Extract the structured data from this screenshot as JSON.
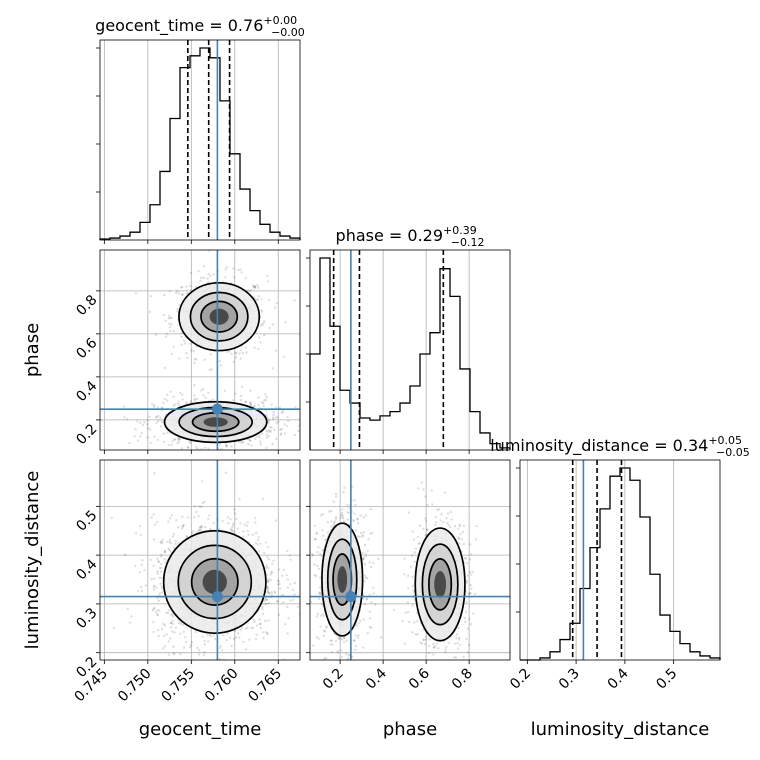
{
  "chart_data": {
    "type": "corner",
    "parameters": [
      "geocent_time",
      "phase",
      "luminosity_distance"
    ],
    "axis_labels": {
      "geocent_time": "geocent_time",
      "phase": "phase",
      "luminosity_distance": "luminosity_distance"
    },
    "titles": {
      "geocent_time": {
        "name": "geocent_time",
        "median": "0.76",
        "plus": "+0.00",
        "minus": "−0.00"
      },
      "phase": {
        "name": "phase",
        "median": "0.29",
        "plus": "+0.39",
        "minus": "−0.12"
      },
      "luminosity_distance": {
        "name": "luminosity_distance",
        "median": "0.34",
        "plus": "+0.05",
        "minus": "−0.05"
      }
    },
    "ranges": {
      "geocent_time": [
        0.7445,
        0.7675
      ],
      "phase": [
        0.06,
        0.99
      ],
      "luminosity_distance": [
        0.185,
        0.595
      ]
    },
    "ticks": {
      "geocent_time": {
        "values": [
          0.745,
          0.75,
          0.755,
          0.76,
          0.765
        ],
        "labels": [
          "0.745",
          "0.750",
          "0.755",
          "0.760",
          "0.765"
        ]
      },
      "phase": {
        "values": [
          0.2,
          0.4,
          0.6,
          0.8
        ],
        "labels": [
          "0.2",
          "0.4",
          "0.6",
          "0.8"
        ]
      },
      "luminosity_distance": {
        "values": [
          0.2,
          0.3,
          0.4,
          0.5
        ],
        "labels": [
          "0.2",
          "0.3",
          "0.4",
          "0.5"
        ]
      }
    },
    "truths": {
      "geocent_time": 0.758,
      "phase": 0.25,
      "luminosity_distance": 0.315
    },
    "quantiles": {
      "geocent_time": [
        0.7546,
        0.757,
        0.7594
      ],
      "phase": [
        0.17,
        0.29,
        0.68
      ],
      "luminosity_distance": [
        0.293,
        0.343,
        0.393
      ]
    },
    "histograms": {
      "geocent_time": [
        0.5,
        1,
        2,
        4,
        9,
        18,
        35,
        62,
        88,
        94,
        98,
        93,
        71,
        44,
        26,
        15,
        8,
        4,
        2,
        1
      ],
      "phase": [
        45,
        90,
        58,
        28,
        22,
        15,
        14,
        16,
        18,
        22,
        30,
        45,
        55,
        85,
        72,
        38,
        18,
        8,
        3,
        1
      ],
      "luminosity_distance": [
        0,
        0,
        1,
        4,
        10,
        18,
        35,
        55,
        74,
        90,
        94,
        88,
        70,
        42,
        22,
        14,
        8,
        4,
        2,
        1
      ]
    },
    "modes": {
      "geocent_time|phase": [
        {
          "x": 0.7582,
          "y": 0.68,
          "sx": 0.0022,
          "sy": 0.075,
          "weight": 0.42
        },
        {
          "x": 0.7578,
          "y": 0.19,
          "sx": 0.0028,
          "sy": 0.045,
          "weight": 0.58
        }
      ],
      "geocent_time|luminosity_distance": [
        {
          "x": 0.7577,
          "y": 0.345,
          "sx": 0.0028,
          "sy": 0.05,
          "weight": 1.0
        }
      ],
      "phase|luminosity_distance": [
        {
          "x": 0.21,
          "y": 0.35,
          "sx": 0.045,
          "sy": 0.055,
          "weight": 0.55
        },
        {
          "x": 0.665,
          "y": 0.34,
          "sx": 0.055,
          "sy": 0.055,
          "weight": 0.45
        }
      ]
    },
    "grid": true
  }
}
